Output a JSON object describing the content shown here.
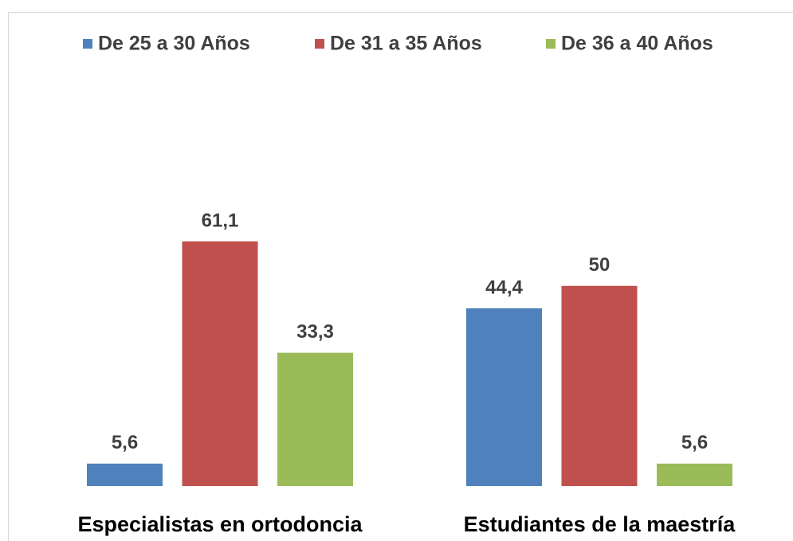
{
  "chart_data": {
    "type": "bar",
    "categories": [
      "Especialistas en ortodoncia",
      "Estudiantes de la maestría"
    ],
    "series": [
      {
        "name": "De 25 a 30 Años",
        "color": "#4f81bd",
        "values": [
          5.6,
          44.4
        ],
        "value_labels": [
          "5,6",
          "44,4"
        ]
      },
      {
        "name": "De 31 a 35 Años",
        "color": "#c0504d",
        "values": [
          61.1,
          50
        ],
        "value_labels": [
          "61,1",
          "50"
        ]
      },
      {
        "name": "De 36 a 40 Años",
        "color": "#9bbb59",
        "values": [
          33.3,
          5.6
        ],
        "value_labels": [
          "33,3",
          "5,6"
        ]
      }
    ],
    "legend": "top"
  }
}
